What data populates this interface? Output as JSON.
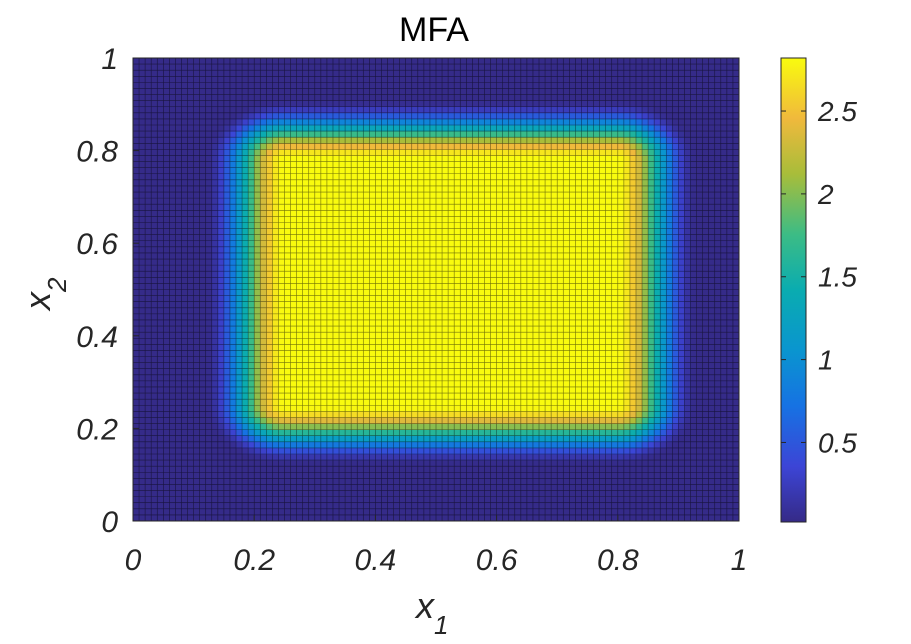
{
  "chart_data": {
    "type": "heatmap",
    "title": "MFA",
    "xlabel": "x",
    "xlabel_sub": "1",
    "ylabel": "x",
    "ylabel_sub": "2",
    "xlim": [
      0,
      1
    ],
    "ylim": [
      0,
      1
    ],
    "xticks": [
      "0",
      "0.2",
      "0.4",
      "0.6",
      "0.8",
      "1"
    ],
    "yticks": [
      "0",
      "0.2",
      "0.4",
      "0.6",
      "0.8",
      "1"
    ],
    "colorbar": {
      "colormap": "parula",
      "range": [
        0.02,
        2.82
      ],
      "ticks": [
        "0.5",
        "1",
        "1.5",
        "2",
        "2.5"
      ]
    },
    "grid_cells": [
      100,
      76
    ],
    "field": {
      "description_of_values": "plateau ≈2.82 on 0.25≤x1≤0.80, 0.25≤x2≤0.78 with smooth falloff to ≈0.03 outside ~0.12–0.93 / ~0.10–0.92",
      "plateau_value": 2.82,
      "background_value": 0.03,
      "x1_plateau": [
        0.25,
        0.8
      ],
      "x2_plateau": [
        0.25,
        0.78
      ],
      "transition_width": 0.13
    },
    "grid": "cell edges drawn"
  }
}
